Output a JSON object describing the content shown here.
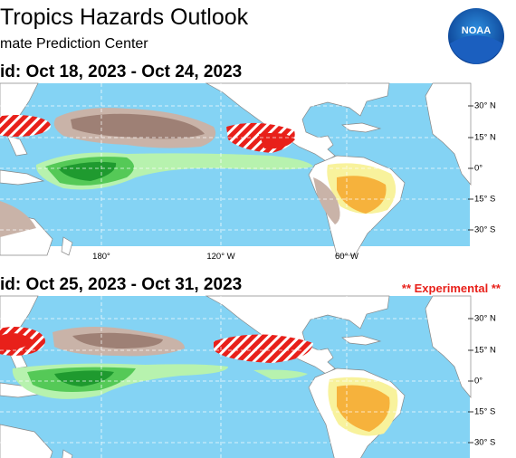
{
  "header": {
    "title": "Tropics Hazards Outlook",
    "subtitle": "mate Prediction Center",
    "logo": "NOAA"
  },
  "panels": [
    {
      "heading": "id: Oct 18, 2023 - Oct 24, 2023",
      "lat_labels": [
        "30° N",
        "15° N",
        "0°",
        "15° S",
        "30° S"
      ],
      "lon_labels": [
        "180°",
        "120° W",
        "60° W"
      ]
    },
    {
      "heading": "id: Oct 25, 2023 - Oct 31, 2023",
      "note": "** Experimental **",
      "lat_labels": [
        "30° N",
        "15° N",
        "0°",
        "15° S",
        "30° S"
      ]
    }
  ]
}
